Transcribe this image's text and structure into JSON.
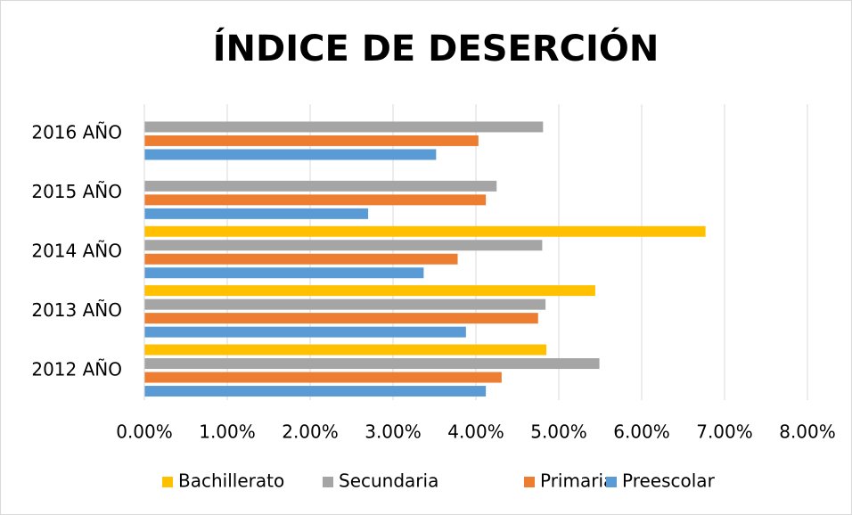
{
  "chart_data": {
    "type": "hbar",
    "title": "ÍNDICE DE DESERCIÓN",
    "categories": [
      "2012 AÑO",
      "2013 AÑO",
      "2014 AÑO",
      "2015 AÑO",
      "2016 AÑO"
    ],
    "series": [
      {
        "name": "Bachillerato",
        "color": "#ffc000",
        "values": [
          4.85,
          5.44,
          6.77,
          null,
          null
        ]
      },
      {
        "name": "Secundaria",
        "color": "#a5a5a5",
        "values": [
          5.49,
          4.84,
          4.8,
          4.25,
          4.81
        ]
      },
      {
        "name": "Primaria",
        "color": "#ed7d31",
        "values": [
          4.31,
          4.75,
          3.78,
          4.12,
          4.03
        ]
      },
      {
        "name": "Preescolar",
        "color": "#5b9bd5",
        "values": [
          4.12,
          3.88,
          3.37,
          2.7,
          3.52
        ]
      }
    ],
    "xlim": [
      0,
      8
    ],
    "xticks": [
      {
        "value": 0,
        "label": "0.00%"
      },
      {
        "value": 1,
        "label": "1.00%"
      },
      {
        "value": 2,
        "label": "2.00%"
      },
      {
        "value": 3,
        "label": "3.00%"
      },
      {
        "value": 4,
        "label": "4.00%"
      },
      {
        "value": 5,
        "label": "5.00%"
      },
      {
        "value": 6,
        "label": "6.00%"
      },
      {
        "value": 7,
        "label": "7.00%"
      },
      {
        "value": 8,
        "label": "8.00%"
      }
    ],
    "grid": true,
    "legend": "bottom"
  }
}
